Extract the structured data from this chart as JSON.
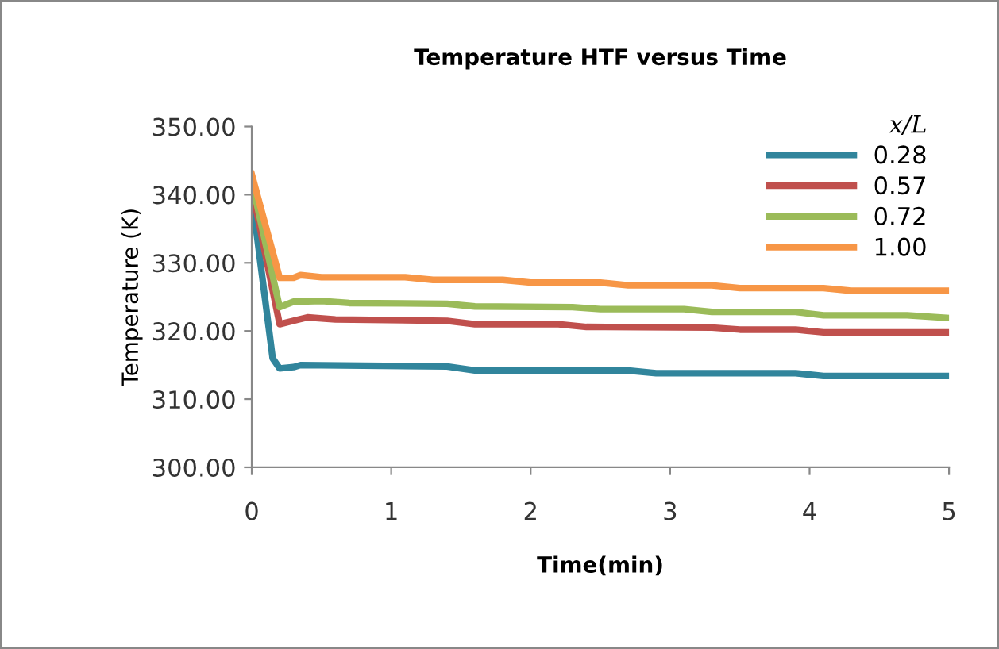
{
  "chart_data": {
    "type": "line",
    "title": "Temperature HTF versus Time",
    "xlabel": "Time(min)",
    "ylabel": "Temperature (K)",
    "legend_title": "x/L",
    "legend": "top right",
    "grid": false,
    "marker": "none",
    "line_style": "solid",
    "xlim": [
      0,
      5
    ],
    "xticks": [
      0,
      1,
      2,
      3,
      4,
      5
    ],
    "ylim": [
      300,
      350
    ],
    "yticks": [
      {
        "value": 300,
        "label": "300.00"
      },
      {
        "value": 310,
        "label": "310.00"
      },
      {
        "value": 320,
        "label": "320.00"
      },
      {
        "value": 330,
        "label": "330.00"
      },
      {
        "value": 340,
        "label": "340.00"
      },
      {
        "value": 350,
        "label": "350.00"
      }
    ],
    "series": [
      {
        "name": "0.28",
        "color": "#31859c",
        "x": [
          0,
          0.15,
          0.2,
          0.3,
          0.35,
          1.4,
          1.6,
          2.7,
          2.9,
          3.9,
          4.1,
          5
        ],
        "values": [
          340,
          316,
          314.5,
          314.7,
          315,
          314.8,
          314.2,
          314.2,
          313.8,
          313.8,
          313.4,
          313.4
        ]
      },
      {
        "name": "0.57",
        "color": "#c0504d",
        "x": [
          0,
          0.2,
          0.3,
          0.4,
          0.6,
          1.4,
          1.6,
          2.2,
          2.4,
          3.3,
          3.5,
          3.9,
          4.1,
          5
        ],
        "values": [
          341,
          321,
          321.5,
          322,
          321.7,
          321.5,
          321,
          321,
          320.6,
          320.5,
          320.2,
          320.2,
          319.8,
          319.8
        ]
      },
      {
        "name": "0.72",
        "color": "#9bbb59",
        "x": [
          0,
          0.2,
          0.3,
          0.5,
          0.7,
          1.4,
          1.6,
          2.3,
          2.5,
          3.1,
          3.3,
          3.9,
          4.1,
          4.7,
          5
        ],
        "values": [
          342,
          323.5,
          324.3,
          324.4,
          324.1,
          324,
          323.6,
          323.5,
          323.2,
          323.2,
          322.8,
          322.8,
          322.3,
          322.3,
          321.9
        ]
      },
      {
        "name": "1.00",
        "color": "#f79646",
        "x": [
          0,
          0.2,
          0.3,
          0.35,
          0.5,
          1.1,
          1.3,
          1.8,
          2,
          2.5,
          2.7,
          3.3,
          3.5,
          4.1,
          4.3,
          5
        ],
        "values": [
          343,
          327.8,
          327.8,
          328.2,
          327.9,
          327.9,
          327.5,
          327.5,
          327.1,
          327.1,
          326.7,
          326.7,
          326.3,
          326.3,
          325.9,
          325.9
        ]
      }
    ]
  }
}
